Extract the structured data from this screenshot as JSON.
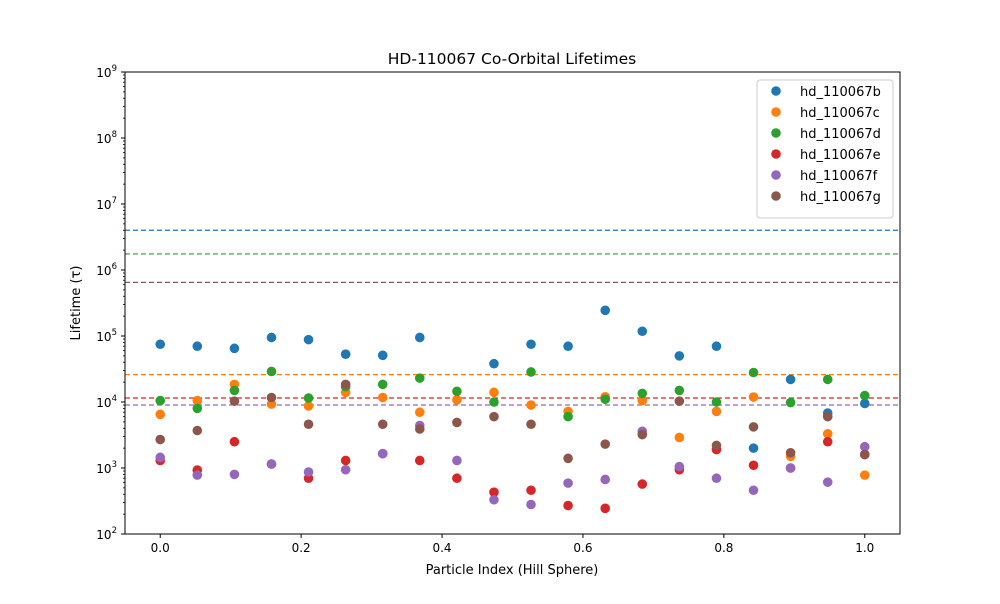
{
  "chart_data": {
    "type": "scatter",
    "title": "HD-110067 Co-Orbital Lifetimes",
    "xlabel": "Particle Index (Hill Sphere)",
    "ylabel": "Lifetime (τ)",
    "xlim": [
      -0.05,
      1.05
    ],
    "ylim": [
      100,
      1000000000
    ],
    "yscale": "log",
    "grid": false,
    "legend_position": "upper right",
    "x_ticks": [
      {
        "value": 0.0,
        "label": "0.0"
      },
      {
        "value": 0.2,
        "label": "0.2"
      },
      {
        "value": 0.4,
        "label": "0.4"
      },
      {
        "value": 0.6,
        "label": "0.6"
      },
      {
        "value": 0.8,
        "label": "0.8"
      },
      {
        "value": 1.0,
        "label": "1.0"
      }
    ],
    "y_ticks": [
      {
        "value": 100,
        "base": "10",
        "exp": "2"
      },
      {
        "value": 1000,
        "base": "10",
        "exp": "3"
      },
      {
        "value": 10000,
        "base": "10",
        "exp": "4"
      },
      {
        "value": 100000,
        "base": "10",
        "exp": "5"
      },
      {
        "value": 1000000,
        "base": "10",
        "exp": "6"
      },
      {
        "value": 10000000,
        "base": "10",
        "exp": "7"
      },
      {
        "value": 100000000,
        "base": "10",
        "exp": "8"
      },
      {
        "value": 1000000000,
        "base": "10",
        "exp": "9"
      }
    ],
    "x": [
      0.0,
      0.0526,
      0.1053,
      0.1579,
      0.2105,
      0.2632,
      0.3158,
      0.3684,
      0.4211,
      0.4737,
      0.5263,
      0.5789,
      0.6316,
      0.6842,
      0.7368,
      0.7895,
      0.8421,
      0.8947,
      0.9474,
      1.0
    ],
    "series": [
      {
        "name": "hd_110067b",
        "color": "#1f77b4",
        "reference_line": 4000000,
        "values": [
          75000,
          70000,
          65000,
          95000,
          88000,
          53000,
          51000,
          95000,
          null,
          38000,
          75000,
          70000,
          245000,
          118000,
          50000,
          70000,
          2000,
          22000,
          6800,
          9500
        ]
      },
      {
        "name": "hd_110067c",
        "color": "#ff7f0e",
        "reference_line": 26000,
        "values": [
          6500,
          10500,
          18500,
          9300,
          8700,
          14000,
          11700,
          7000,
          10800,
          14000,
          9000,
          7200,
          12000,
          10500,
          2900,
          7200,
          11900,
          1500,
          3300,
          780
        ]
      },
      {
        "name": "hd_110067d",
        "color": "#2ca02c",
        "reference_line": 1750000,
        "values": [
          10500,
          8000,
          15000,
          29000,
          11500,
          17000,
          18500,
          23000,
          14500,
          10000,
          28500,
          6000,
          11000,
          13500,
          15000,
          10000,
          28000,
          9800,
          22000,
          12500
        ]
      },
      {
        "name": "hd_110067e",
        "color": "#d62728",
        "reference_line": 11500,
        "values": [
          1300,
          930,
          2500,
          1150,
          700,
          1300,
          1650,
          1300,
          700,
          430,
          460,
          270,
          245,
          570,
          940,
          1900,
          1100,
          1000,
          2500,
          1600
        ]
      },
      {
        "name": "hd_110067f",
        "color": "#9467bd",
        "reference_line": 9000,
        "values": [
          1450,
          780,
          800,
          1150,
          870,
          940,
          1650,
          4400,
          1300,
          330,
          280,
          590,
          670,
          3600,
          1050,
          700,
          460,
          1000,
          610,
          2100
        ]
      },
      {
        "name": "hd_110067g",
        "color": "#8c564b",
        "reference_line": 650000,
        "values": [
          2700,
          3700,
          10300,
          11700,
          4600,
          18500,
          4600,
          3900,
          4900,
          6000,
          4600,
          1400,
          2300,
          3200,
          10300,
          2200,
          4200,
          1700,
          6000,
          1600
        ]
      }
    ]
  }
}
